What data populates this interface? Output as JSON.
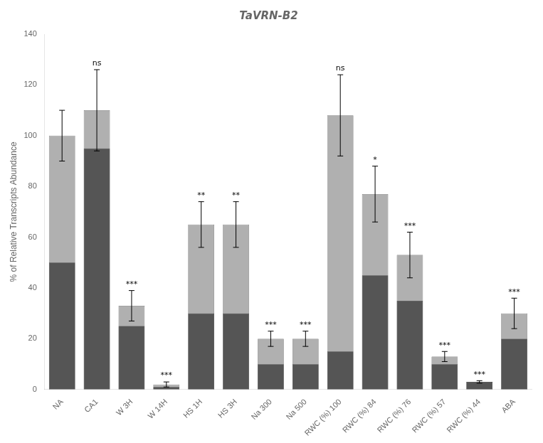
{
  "chart_data": {
    "type": "bar",
    "title": "TaVRN-B2",
    "ylabel": "% of Relative Transcripts Abundance",
    "categories": [
      "NA",
      "CA1",
      "W 3H",
      "W 14H",
      "HS 1H",
      "HS 3H",
      "Na 300",
      "Na 500",
      "RWC (%) 100",
      "RWC (%) 84",
      "RWC (%) 76",
      "RWC (%) 57",
      "RWC (%) 44",
      "ABA"
    ],
    "series": [
      {
        "color": "#b0b0b0",
        "values": [
          100,
          110,
          33,
          2,
          65,
          65,
          20,
          20,
          108,
          77,
          53,
          13,
          3,
          30
        ],
        "errors": [
          10,
          16,
          6,
          1,
          9,
          9,
          3,
          3,
          16,
          11,
          9,
          2,
          0.5,
          6
        ]
      },
      {
        "color": "#555555",
        "values": [
          50,
          95,
          25,
          1,
          30,
          30,
          10,
          10,
          15,
          45,
          35,
          10,
          3,
          20
        ]
      }
    ],
    "annotations": [
      {
        "category": "CA1",
        "text": "ns"
      },
      {
        "category": "W 3H",
        "text": "***"
      },
      {
        "category": "W 14H",
        "text": "***"
      },
      {
        "category": "HS 1H",
        "text": "**"
      },
      {
        "category": "HS 3H",
        "text": "**"
      },
      {
        "category": "Na 300",
        "text": "***"
      },
      {
        "category": "Na 500",
        "text": "***"
      },
      {
        "category": "RWC (%) 100",
        "text": "ns"
      },
      {
        "category": "RWC (%) 84",
        "text": "*"
      },
      {
        "category": "RWC (%) 76",
        "text": "***"
      },
      {
        "category": "RWC (%) 57",
        "text": "***"
      },
      {
        "category": "RWC (%) 44",
        "text": "***"
      },
      {
        "category": "ABA",
        "text": "***"
      }
    ],
    "ylim": [
      0,
      140
    ],
    "yticks": [
      0,
      20,
      40,
      60,
      80,
      100,
      120,
      140
    ],
    "grid": false
  }
}
